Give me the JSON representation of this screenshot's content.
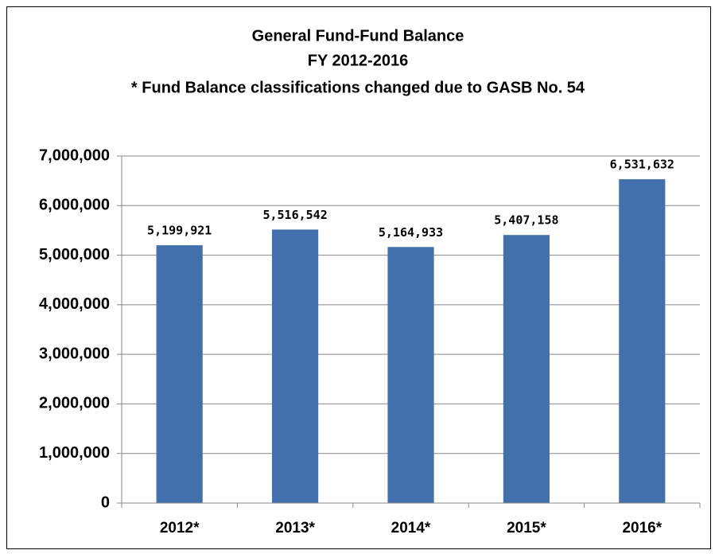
{
  "chart_data": {
    "type": "bar",
    "title": "General Fund-Fund Balance",
    "subtitle": "FY 2012-2016",
    "annotation": "* Fund Balance classifications changed due to GASB No. 54",
    "categories": [
      "2012*",
      "2013*",
      "2014*",
      "2015*",
      "2016*"
    ],
    "values": [
      5199921,
      5516542,
      5164933,
      5407158,
      6531632
    ],
    "value_labels": [
      "5,199,921",
      "5,516,542",
      "5,164,933",
      "5,407,158",
      "6,531,632"
    ],
    "color": "#4270ad",
    "ylim": [
      0,
      7000000
    ],
    "yticks": [
      0,
      {
        "value": 1000000,
        "label": "1,000,000"
      },
      {
        "value": 2000000,
        "label": "2,000,000"
      },
      {
        "value": 3000000,
        "label": "3,000,000"
      },
      {
        "value": 4000000,
        "label": "4,000,000"
      },
      {
        "value": 5000000,
        "label": "5,000,000"
      },
      {
        "value": 6000000,
        "label": "6,000,000"
      },
      {
        "value": 7000000,
        "label": "7,000,000"
      }
    ],
    "grid": true
  }
}
